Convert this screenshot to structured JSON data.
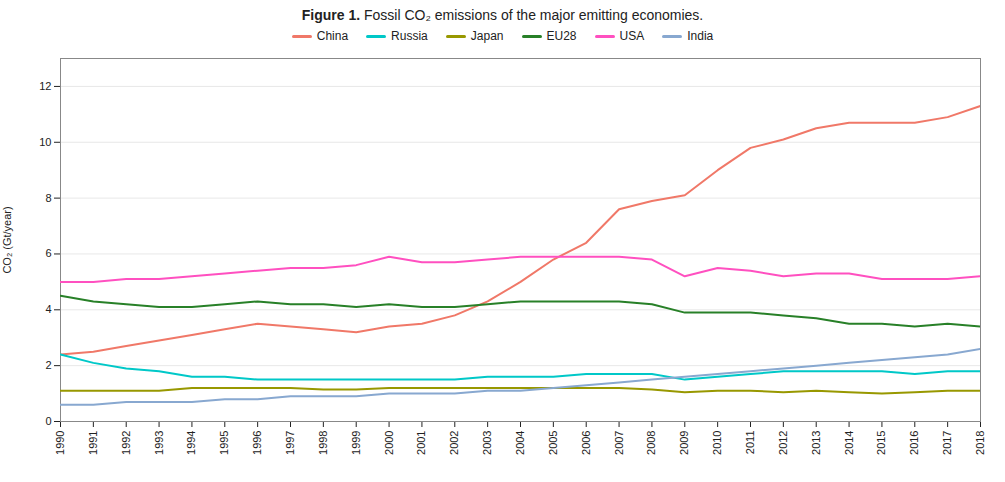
{
  "chart_data": {
    "type": "line",
    "title": "Figure 1. Fossil CO₂ emissions of the major emitting economies.",
    "y_label": "CO₂ (Gt/year)",
    "x": [
      1990,
      1991,
      1992,
      1993,
      1994,
      1995,
      1996,
      1997,
      1998,
      1999,
      2000,
      2001,
      2002,
      2003,
      2004,
      2005,
      2006,
      2007,
      2008,
      2009,
      2010,
      2011,
      2012,
      2013,
      2014,
      2015,
      2016,
      2017,
      2018
    ],
    "series": [
      {
        "name": "China",
        "color": "#f07868",
        "values": [
          2.4,
          2.5,
          2.7,
          2.9,
          3.1,
          3.3,
          3.5,
          3.4,
          3.3,
          3.2,
          3.4,
          3.5,
          3.8,
          4.3,
          5.0,
          5.8,
          6.4,
          7.6,
          7.9,
          8.1,
          9.0,
          9.8,
          10.1,
          10.5,
          10.7,
          10.7,
          10.7,
          10.9,
          11.3
        ]
      },
      {
        "name": "Russia",
        "color": "#00c8c8",
        "values": [
          2.4,
          2.1,
          1.9,
          1.8,
          1.6,
          1.6,
          1.5,
          1.5,
          1.5,
          1.5,
          1.5,
          1.5,
          1.5,
          1.6,
          1.6,
          1.6,
          1.7,
          1.7,
          1.7,
          1.5,
          1.6,
          1.7,
          1.8,
          1.8,
          1.8,
          1.8,
          1.7,
          1.8,
          1.8
        ]
      },
      {
        "name": "Japan",
        "color": "#989800",
        "values": [
          1.1,
          1.1,
          1.1,
          1.1,
          1.2,
          1.2,
          1.2,
          1.2,
          1.15,
          1.15,
          1.2,
          1.2,
          1.2,
          1.2,
          1.2,
          1.2,
          1.2,
          1.2,
          1.15,
          1.05,
          1.1,
          1.1,
          1.05,
          1.1,
          1.05,
          1.0,
          1.05,
          1.1,
          1.1
        ]
      },
      {
        "name": "EU28",
        "color": "#288028",
        "values": [
          4.5,
          4.3,
          4.2,
          4.1,
          4.1,
          4.2,
          4.3,
          4.2,
          4.2,
          4.1,
          4.2,
          4.1,
          4.1,
          4.2,
          4.3,
          4.3,
          4.3,
          4.3,
          4.2,
          3.9,
          3.9,
          3.9,
          3.8,
          3.7,
          3.5,
          3.5,
          3.4,
          3.5,
          3.4
        ]
      },
      {
        "name": "USA",
        "color": "#ff50c0",
        "values": [
          5.0,
          5.0,
          5.1,
          5.1,
          5.2,
          5.3,
          5.4,
          5.5,
          5.5,
          5.6,
          5.9,
          5.7,
          5.7,
          5.8,
          5.9,
          5.9,
          5.9,
          5.9,
          5.8,
          5.2,
          5.5,
          5.4,
          5.2,
          5.3,
          5.3,
          5.1,
          5.1,
          5.1,
          5.2
        ]
      },
      {
        "name": "India",
        "color": "#88a8d0",
        "values": [
          0.6,
          0.6,
          0.7,
          0.7,
          0.7,
          0.8,
          0.8,
          0.9,
          0.9,
          0.9,
          1.0,
          1.0,
          1.0,
          1.1,
          1.1,
          1.2,
          1.3,
          1.4,
          1.5,
          1.6,
          1.7,
          1.8,
          1.9,
          2.0,
          2.1,
          2.2,
          2.3,
          2.4,
          2.6
        ]
      }
    ],
    "xlim": [
      1990,
      2018
    ],
    "xticks": [
      1990,
      1991,
      1992,
      1993,
      1994,
      1995,
      1996,
      1997,
      1998,
      1999,
      2000,
      2001,
      2002,
      2003,
      2004,
      2005,
      2006,
      2007,
      2008,
      2009,
      2010,
      2011,
      2012,
      2013,
      2014,
      2015,
      2016,
      2017,
      2018
    ],
    "ylim": [
      0,
      13
    ],
    "yticks": [
      0,
      2,
      4,
      6,
      8,
      10,
      12
    ],
    "grid": true,
    "legend": "top"
  }
}
